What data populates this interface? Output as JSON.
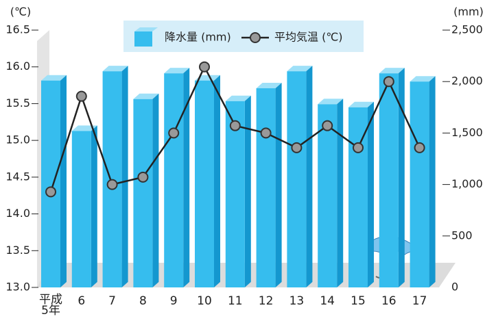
{
  "chart_data": {
    "type": "bar",
    "y_unit": "(℃)",
    "y2_unit": "(mm)",
    "categories": [
      "平成\n5年",
      "6",
      "7",
      "8",
      "9",
      "10",
      "11",
      "12",
      "13",
      "14",
      "15",
      "16",
      "17"
    ],
    "series": [
      {
        "name": "降水量 (mm)",
        "type": "bar",
        "axis": "y2",
        "color": "#36bdee",
        "values": [
          2010,
          1520,
          2100,
          1830,
          2080,
          2010,
          1810,
          1935,
          2100,
          1780,
          1750,
          2080,
          2000
        ]
      },
      {
        "name": "平均気温 (℃)",
        "type": "line",
        "color": "#222222",
        "values": [
          14.3,
          15.6,
          14.4,
          14.5,
          15.1,
          16.0,
          15.2,
          15.1,
          14.9,
          15.2,
          14.9,
          15.8,
          14.9
        ]
      }
    ],
    "ylim": [
      13,
      16.5
    ],
    "yticks": [
      {
        "value": 13,
        "label": "13.0"
      },
      13.5,
      {
        "value": 14,
        "label": "14.0"
      },
      14.5,
      {
        "value": 15,
        "label": "15.0"
      },
      15.5,
      {
        "value": 16,
        "label": "16.0"
      },
      16.5
    ],
    "y2lim": [
      0,
      2500
    ],
    "y2ticks": [
      0,
      500,
      {
        "value": 1000,
        "label": "1,000"
      },
      {
        "value": 1500,
        "label": "1,500"
      },
      {
        "value": 2000,
        "label": "2,000"
      },
      {
        "value": 2500,
        "label": "2,500"
      }
    ]
  }
}
